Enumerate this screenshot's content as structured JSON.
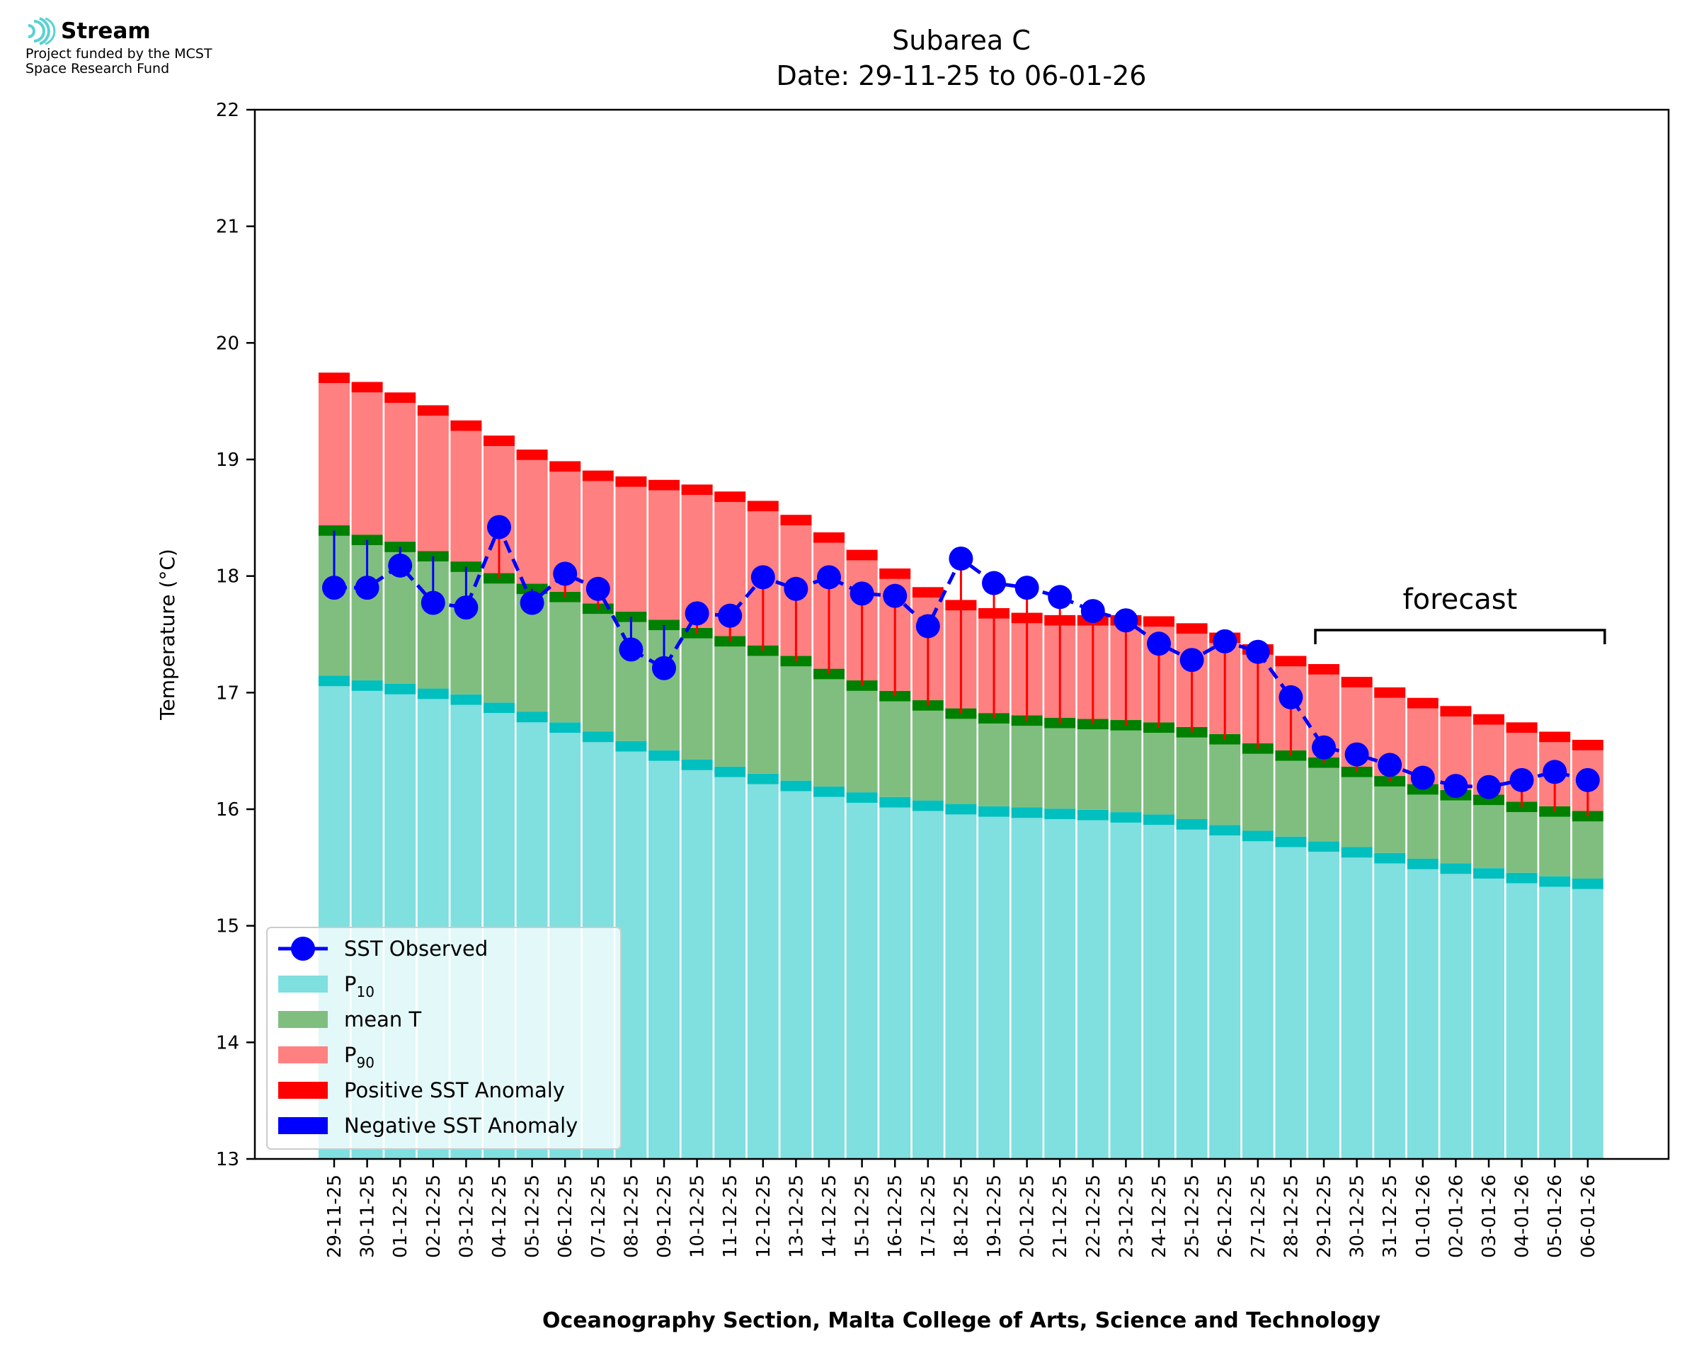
{
  "logo": {
    "brand": "Stream",
    "funding_line1": "Project funded by the MCST",
    "funding_line2": "Space Research Fund",
    "colors": {
      "wave": "#5ad1d1"
    }
  },
  "chart_data": {
    "type": "bar",
    "title": "Subarea C",
    "subtitle": "Date: 29-11-25 to 06-01-26",
    "xlabel": "Oceanography Section, Malta College of Arts, Science and Technology",
    "ylabel": "Temperature (°C)",
    "ylim": [
      13,
      22
    ],
    "yticks": [
      13,
      14,
      15,
      16,
      17,
      18,
      19,
      20,
      21,
      22
    ],
    "grid": false,
    "legend_position": "lower-left",
    "categories": [
      "29-11-25",
      "30-11-25",
      "01-12-25",
      "02-12-25",
      "03-12-25",
      "04-12-25",
      "05-12-25",
      "06-12-25",
      "07-12-25",
      "08-12-25",
      "09-12-25",
      "10-12-25",
      "11-12-25",
      "12-12-25",
      "13-12-25",
      "14-12-25",
      "15-12-25",
      "16-12-25",
      "17-12-25",
      "18-12-25",
      "19-12-25",
      "20-12-25",
      "21-12-25",
      "22-12-25",
      "23-12-25",
      "24-12-25",
      "25-12-25",
      "26-12-25",
      "27-12-25",
      "28-12-25",
      "29-12-25",
      "30-12-25",
      "31-12-25",
      "01-01-26",
      "02-01-26",
      "03-01-26",
      "04-01-26",
      "05-01-26",
      "06-01-26"
    ],
    "series": [
      {
        "name": "P10",
        "values": [
          17.1,
          17.06,
          17.03,
          16.99,
          16.94,
          16.87,
          16.79,
          16.7,
          16.62,
          16.54,
          16.46,
          16.38,
          16.32,
          16.26,
          16.2,
          16.15,
          16.1,
          16.06,
          16.03,
          16.0,
          15.98,
          15.97,
          15.96,
          15.95,
          15.93,
          15.91,
          15.87,
          15.82,
          15.77,
          15.72,
          15.68,
          15.63,
          15.58,
          15.53,
          15.49,
          15.45,
          15.41,
          15.38,
          15.36
        ]
      },
      {
        "name": "mean T",
        "values": [
          18.39,
          18.31,
          18.25,
          18.17,
          18.08,
          17.98,
          17.89,
          17.82,
          17.72,
          17.65,
          17.58,
          17.51,
          17.44,
          17.36,
          17.27,
          17.16,
          17.06,
          16.97,
          16.89,
          16.82,
          16.78,
          16.76,
          16.74,
          16.73,
          16.72,
          16.7,
          16.66,
          16.6,
          16.52,
          16.46,
          16.4,
          16.32,
          16.24,
          16.17,
          16.12,
          16.08,
          16.02,
          15.98,
          15.94
        ]
      },
      {
        "name": "P90",
        "values": [
          19.7,
          19.62,
          19.53,
          19.42,
          19.29,
          19.16,
          19.04,
          18.94,
          18.86,
          18.81,
          18.78,
          18.74,
          18.68,
          18.6,
          18.48,
          18.33,
          18.18,
          18.02,
          17.86,
          17.75,
          17.68,
          17.64,
          17.62,
          17.62,
          17.62,
          17.61,
          17.55,
          17.47,
          17.37,
          17.27,
          17.2,
          17.09,
          17.0,
          16.91,
          16.84,
          16.77,
          16.7,
          16.62,
          16.55
        ]
      },
      {
        "name": "SST Observed",
        "values": [
          17.9,
          17.9,
          18.09,
          17.77,
          17.73,
          18.42,
          17.77,
          18.02,
          17.89,
          17.37,
          17.21,
          17.68,
          17.66,
          17.99,
          17.89,
          17.99,
          17.85,
          17.83,
          17.57,
          18.15,
          17.94,
          17.9,
          17.82,
          17.7,
          17.62,
          17.42,
          17.28,
          17.44,
          17.35,
          16.96,
          16.53,
          16.47,
          16.38,
          16.27,
          16.2,
          16.19,
          16.25,
          16.32,
          16.25
        ]
      }
    ],
    "legend": [
      {
        "label": "SST Observed",
        "kind": "line-marker",
        "color": "#0000ff"
      },
      {
        "label": "P",
        "sub": "10",
        "kind": "patch",
        "color": "#80dfdf"
      },
      {
        "label": "mean T",
        "kind": "patch",
        "color": "#80be80"
      },
      {
        "label": "P",
        "sub": "90",
        "kind": "patch",
        "color": "#ff8080"
      },
      {
        "label": "Positive SST Anomaly",
        "kind": "patch",
        "color": "#ff0000"
      },
      {
        "label": "Negative SST Anomaly",
        "kind": "patch",
        "color": "#0000ff"
      }
    ],
    "annotation": {
      "text": "forecast",
      "from_category": "29-12-25",
      "to_category": "06-01-26"
    },
    "colors": {
      "p10": "#80dfdf",
      "p10_edge": "#00bfbf",
      "mean": "#80be80",
      "mean_edge": "#008000",
      "p90": "#ff8080",
      "p90_edge": "#ff0000",
      "positive_anomaly": "#ff0000",
      "negative_anomaly": "#0000ff",
      "sst": "#0000ff"
    }
  }
}
